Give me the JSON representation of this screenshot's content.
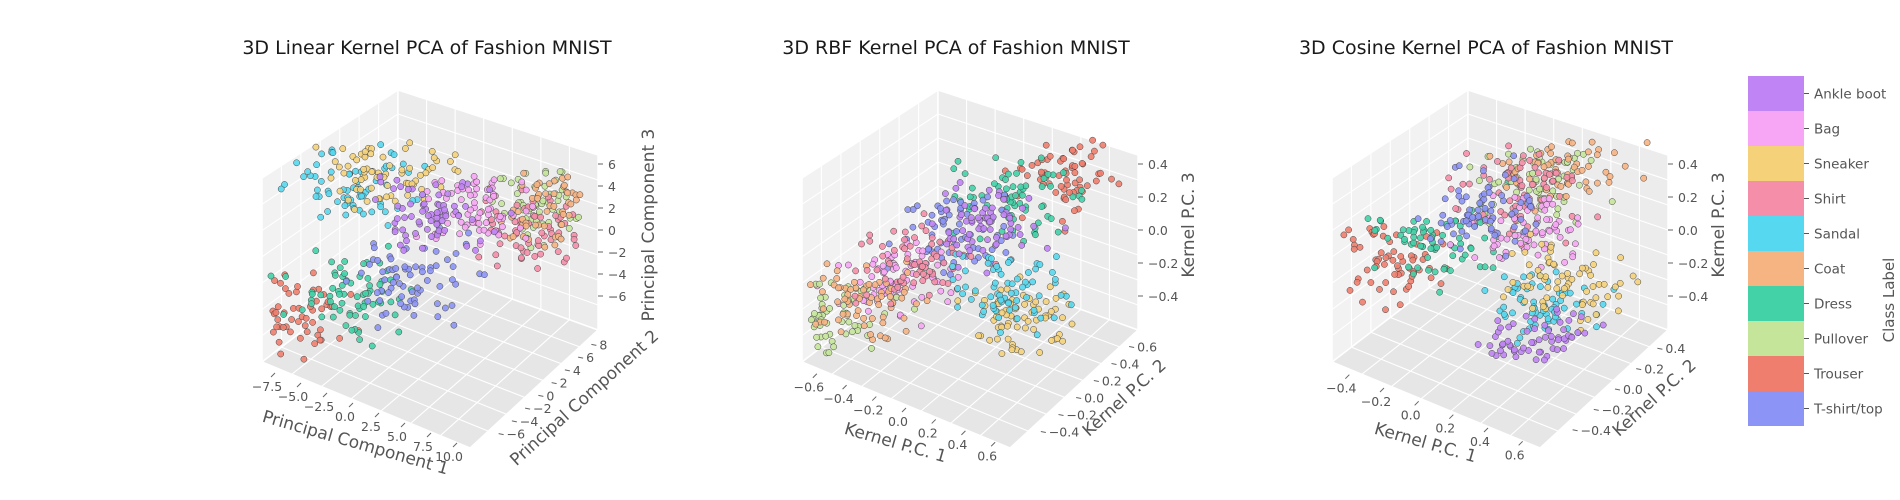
{
  "chart_data": [
    {
      "type": "scatter",
      "title": "3D Linear Kernel PCA of Fashion MNIST",
      "xlabel": "Principal Component 1",
      "ylabel": "Principal Component 2",
      "zlabel": "Principal Component 3",
      "xticks": [
        "−7.5",
        "−5.0",
        "−2.5",
        "0.0",
        "2.5",
        "5.0",
        "7.5",
        "10.0"
      ],
      "yticks": [
        "−6",
        "−4",
        "−2",
        "0",
        "2",
        "4",
        "6",
        "8"
      ],
      "zticks": [
        "−6",
        "−4",
        "−2",
        "0",
        "2",
        "4",
        "6"
      ],
      "clusters": [
        {
          "class": "Trouser",
          "x": -5.5,
          "y": -4.0,
          "z": -3.0
        },
        {
          "class": "Dress",
          "x": -2.5,
          "y": -3.0,
          "z": -2.0
        },
        {
          "class": "T-shirt/top",
          "x": 1.0,
          "y": -1.5,
          "z": -1.0
        },
        {
          "class": "Pullover",
          "x": 5.0,
          "y": 4.0,
          "z": 1.5
        },
        {
          "class": "Shirt",
          "x": 4.0,
          "y": 3.0,
          "z": 0.5
        },
        {
          "class": "Coat",
          "x": 5.5,
          "y": 4.5,
          "z": 1.0
        },
        {
          "class": "Sandal",
          "x": -4.5,
          "y": 0.5,
          "z": 2.0
        },
        {
          "class": "Sneaker",
          "x": -3.0,
          "y": 1.5,
          "z": 2.5
        },
        {
          "class": "Bag",
          "x": 2.0,
          "y": 2.0,
          "z": 1.5
        },
        {
          "class": "Ankle boot",
          "x": 0.0,
          "y": 1.0,
          "z": 1.0
        }
      ]
    },
    {
      "type": "scatter",
      "title": "3D RBF Kernel PCA of Fashion MNIST",
      "xlabel": "Kernel P.C. 1",
      "ylabel": "Kernel P.C. 2",
      "zlabel": "Kernel P.C. 3",
      "xticks": [
        "−0.6",
        "−0.4",
        "−0.2",
        "0.0",
        "0.2",
        "0.4",
        "0.6"
      ],
      "yticks": [
        "−0.4",
        "−0.2",
        "0.0",
        "0.2",
        "0.4",
        "0.6"
      ],
      "zticks": [
        "−0.4",
        "−0.2",
        "0.0",
        "0.2",
        "0.4"
      ],
      "clusters": [
        {
          "class": "Trouser",
          "x": 0.25,
          "y": 0.45,
          "z": 0.35
        },
        {
          "class": "Dress",
          "x": 0.1,
          "y": 0.35,
          "z": 0.2
        },
        {
          "class": "T-shirt/top",
          "x": -0.05,
          "y": 0.1,
          "z": 0.05
        },
        {
          "class": "Bag",
          "x": -0.25,
          "y": -0.15,
          "z": -0.15
        },
        {
          "class": "Pullover",
          "x": -0.45,
          "y": -0.35,
          "z": -0.35
        },
        {
          "class": "Coat",
          "x": -0.35,
          "y": -0.25,
          "z": -0.3
        },
        {
          "class": "Shirt",
          "x": -0.2,
          "y": -0.05,
          "z": -0.1
        },
        {
          "class": "Sneaker",
          "x": 0.45,
          "y": -0.2,
          "z": -0.25
        },
        {
          "class": "Sandal",
          "x": 0.3,
          "y": -0.1,
          "z": -0.15
        },
        {
          "class": "Ankle boot",
          "x": 0.05,
          "y": 0.15,
          "z": 0.1
        }
      ]
    },
    {
      "type": "scatter",
      "title": "3D Cosine Kernel PCA of Fashion MNIST",
      "xlabel": "Kernel P.C. 1",
      "ylabel": "Kernel P.C. 2",
      "zlabel": "Kernel P.C. 3",
      "xticks": [
        "−0.4",
        "−0.2",
        "0.0",
        "0.2",
        "0.4",
        "0.6"
      ],
      "yticks": [
        "−0.4",
        "−0.2",
        "0.0",
        "0.2",
        "0.4"
      ],
      "zticks": [
        "−0.4",
        "−0.2",
        "0.0",
        "0.2",
        "0.4"
      ],
      "clusters": [
        {
          "class": "Trouser",
          "x": -0.45,
          "y": -0.1,
          "z": -0.15
        },
        {
          "class": "Dress",
          "x": -0.3,
          "y": 0.0,
          "z": -0.05
        },
        {
          "class": "Pullover",
          "x": 0.0,
          "y": 0.2,
          "z": 0.25
        },
        {
          "class": "Coat",
          "x": 0.05,
          "y": 0.25,
          "z": 0.3
        },
        {
          "class": "Shirt",
          "x": -0.05,
          "y": 0.15,
          "z": 0.2
        },
        {
          "class": "Bag",
          "x": 0.1,
          "y": 0.05,
          "z": 0.05
        },
        {
          "class": "Sandal",
          "x": 0.35,
          "y": -0.15,
          "z": -0.2
        },
        {
          "class": "Sneaker",
          "x": 0.4,
          "y": -0.1,
          "z": -0.1
        },
        {
          "class": "Ankle boot",
          "x": 0.4,
          "y": -0.25,
          "z": -0.35
        },
        {
          "class": "T-shirt/top",
          "x": -0.15,
          "y": 0.1,
          "z": 0.1
        }
      ]
    }
  ],
  "legend": {
    "title": "Class Label",
    "placement": "right",
    "entries": [
      {
        "label": "Ankle boot",
        "color": "#c084f5"
      },
      {
        "label": "Bag",
        "color": "#f7a6f5"
      },
      {
        "label": "Sneaker",
        "color": "#f5d27a"
      },
      {
        "label": "Shirt",
        "color": "#f58ea8"
      },
      {
        "label": "Sandal",
        "color": "#56d8f0"
      },
      {
        "label": "Coat",
        "color": "#f7b483"
      },
      {
        "label": "Dress",
        "color": "#43d1a8"
      },
      {
        "label": "Pullover",
        "color": "#c5e69a"
      },
      {
        "label": "Trouser",
        "color": "#f07e6e"
      },
      {
        "label": "T-shirt/top",
        "color": "#8c94f5"
      }
    ]
  }
}
